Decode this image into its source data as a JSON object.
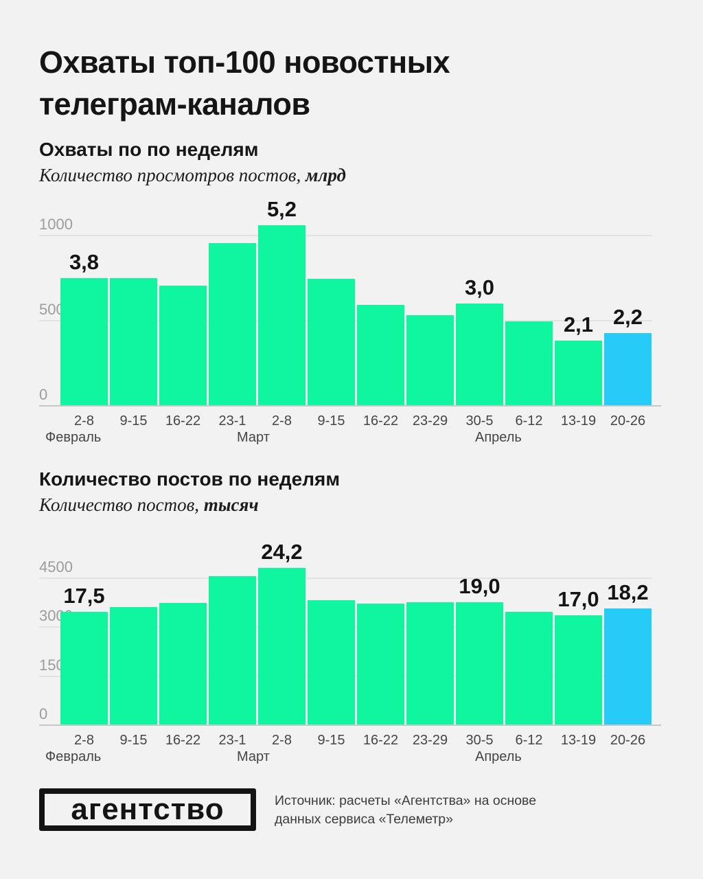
{
  "title": {
    "line1": "Охваты топ-100 новостных",
    "line2": "телеграм-каналов"
  },
  "colors": {
    "background": "#F2F2F2",
    "bar_green": "#10F5A0",
    "bar_highlight_blue": "#27CBF8",
    "gridline": "#E2E2E2",
    "axis_baseline": "#C7C7C7",
    "tick_text": "#9C9C9C",
    "axis_text": "#454545",
    "label_text": "#141414"
  },
  "chart_data": [
    {
      "type": "bar",
      "title": "Охваты по по неделям",
      "subtitle": "Количество просмотров постов,",
      "subtitle_unit": "млрд",
      "categories": [
        "2-8",
        "9-15",
        "16-22",
        "23-1",
        "2-8",
        "9-15",
        "16-22",
        "23-29",
        "30-5",
        "6-12",
        "13-19",
        "20-26"
      ],
      "values": [
        745,
        745,
        700,
        950,
        1055,
        740,
        590,
        530,
        595,
        490,
        380,
        425
      ],
      "annotations": [
        {
          "index": 0,
          "text": "3,8"
        },
        {
          "index": 4,
          "text": "5,2"
        },
        {
          "index": 8,
          "text": "3,0"
        },
        {
          "index": 10,
          "text": "2,1"
        },
        {
          "index": 11,
          "text": "2,2"
        }
      ],
      "yticks": [
        0,
        500,
        1000
      ],
      "ylim": [
        0,
        1100
      ],
      "highlight_index": 11,
      "months": [
        {
          "label": "Февраль",
          "x": 9
        },
        {
          "label": "Март",
          "x": 288
        },
        {
          "label": "Апрель",
          "x": 635
        }
      ],
      "grid": true,
      "legend": "none"
    },
    {
      "type": "bar",
      "title": "Количество постов по неделям",
      "subtitle": "Количество постов,",
      "subtitle_unit": "тысяч",
      "categories": [
        "2-8",
        "9-15",
        "16-22",
        "23-1",
        "2-8",
        "9-15",
        "16-22",
        "23-29",
        "30-5",
        "6-12",
        "13-19",
        "20-26"
      ],
      "values": [
        3450,
        3600,
        3720,
        4540,
        4790,
        3810,
        3700,
        3740,
        3740,
        3450,
        3340,
        3550
      ],
      "annotations": [
        {
          "index": 0,
          "text": "17,5"
        },
        {
          "index": 4,
          "text": "24,2"
        },
        {
          "index": 8,
          "text": "19,0"
        },
        {
          "index": 10,
          "text": "17,0"
        },
        {
          "index": 11,
          "text": "18,2"
        }
      ],
      "yticks": [
        0,
        1500,
        3000,
        4500
      ],
      "ylim": [
        0,
        4900
      ],
      "highlight_index": 11,
      "months": [
        {
          "label": "Февраль",
          "x": 9
        },
        {
          "label": "Март",
          "x": 288
        },
        {
          "label": "Апрель",
          "x": 635
        }
      ],
      "grid": true,
      "legend": "none"
    }
  ],
  "footer": {
    "logo_text": "агентство",
    "source_line1": "Источник: расчеты «Агентства» на основе",
    "source_line2": "данных сервиса «Телеметр»"
  }
}
